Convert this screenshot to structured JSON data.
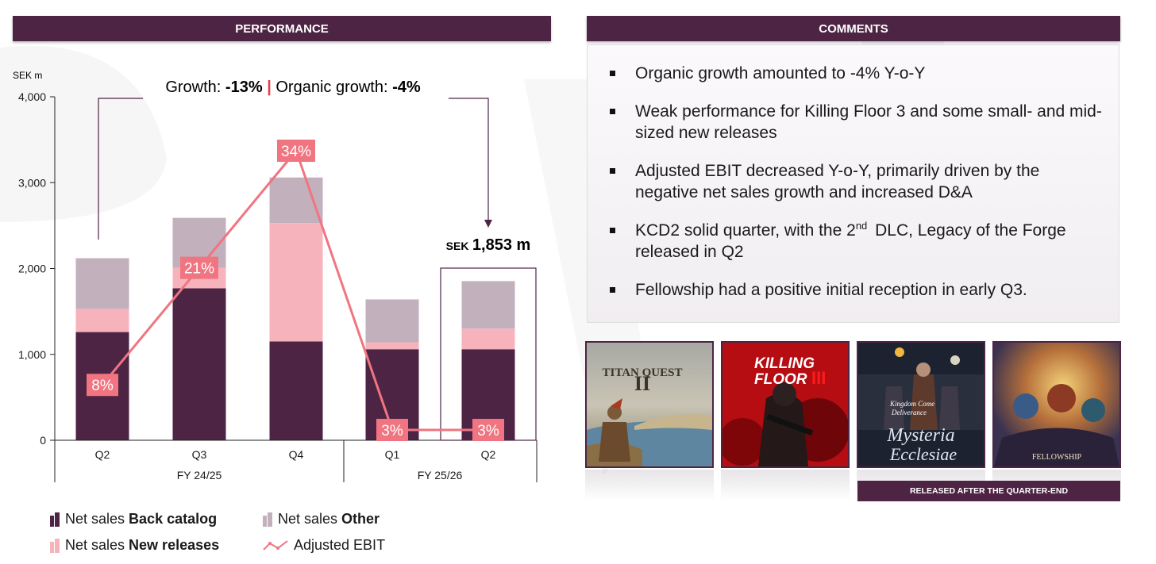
{
  "headers": {
    "performance": "PERFORMANCE",
    "comments": "COMMENTS"
  },
  "colors": {
    "brand": "#4e2444",
    "back_catalog": "#4e2444",
    "new_releases": "#f7b3bc",
    "other": "#c2b0bd",
    "ebit": "#f07580"
  },
  "chart_data": {
    "type": "bar",
    "stacked": true,
    "unit_label": "SEK m",
    "categories": [
      "Q2",
      "Q3",
      "Q4",
      "Q1",
      "Q2"
    ],
    "groups": [
      {
        "label": "FY 24/25",
        "categories": [
          "Q2",
          "Q3",
          "Q4"
        ]
      },
      {
        "label": "FY 25/26",
        "categories": [
          "Q1",
          "Q2"
        ]
      }
    ],
    "ylim": [
      0,
      4000
    ],
    "yticks": [
      "0",
      "1,000",
      "2,000",
      "3,000",
      "4,000"
    ],
    "ytick_values": [
      0,
      1000,
      2000,
      3000,
      4000
    ],
    "series": [
      {
        "name": "Net sales Back catalog",
        "key": "back_catalog",
        "values": [
          1260,
          1770,
          1150,
          1060,
          1060
        ]
      },
      {
        "name": "Net sales New releases",
        "key": "new_releases",
        "values": [
          270,
          240,
          1380,
          80,
          240
        ]
      },
      {
        "name": "Net sales Other",
        "key": "other",
        "values": [
          590,
          580,
          530,
          500,
          553
        ]
      }
    ],
    "line": {
      "name": "Adjusted EBIT",
      "margins_pct": [
        8,
        21,
        34,
        3,
        3
      ],
      "labels": [
        "8%",
        "21%",
        "34%",
        "3%",
        "3%"
      ]
    },
    "growth_annotation": {
      "growth_label": "Growth:",
      "growth_value": "-13%",
      "separator": "|",
      "organic_label": "Organic growth:",
      "organic_value": "-4%"
    },
    "highlight": {
      "prefix": "SEK",
      "value": "1,853 m"
    }
  },
  "legend": {
    "back_catalog": {
      "normal": "Net sales ",
      "bold": "Back catalog"
    },
    "new_releases": {
      "normal": "Net sales ",
      "bold": "New releases"
    },
    "other": {
      "normal": "Net sales ",
      "bold": "Other"
    },
    "ebit": "Adjusted EBIT"
  },
  "comments": [
    {
      "text": "Organic growth amounted to -4% Y-o-Y"
    },
    {
      "text": "Weak performance for Killing Floor 3 and some small- and mid-sized new releases"
    },
    {
      "text": "Adjusted EBIT decreased Y-o-Y, primarily driven by the negative net sales growth and increased D&A"
    },
    {
      "before": "KCD2 solid quarter, with the 2",
      "sup": "nd",
      "after": "DLC, Legacy of the Forge released in Q2"
    },
    {
      "text": "Fellowship had a positive initial reception in early Q3."
    }
  ],
  "games": [
    {
      "name": "titan-quest-2",
      "title": "TITAN QUEST",
      "numeral": "II"
    },
    {
      "name": "killing-floor-3",
      "title_line1": "KILLING",
      "title_line2": "FLOOR",
      "numeral": "III"
    },
    {
      "name": "kcd-mysteria",
      "subtitle_line1": "Kingdom Come",
      "subtitle_line2": "Deliverance",
      "title_line1": "Mysteria",
      "title_line2": "Ecclesiae"
    },
    {
      "name": "fellowship",
      "title": "FELLOWSHIP"
    }
  ],
  "released_after": "RELEASED AFTER THE QUARTER-END"
}
